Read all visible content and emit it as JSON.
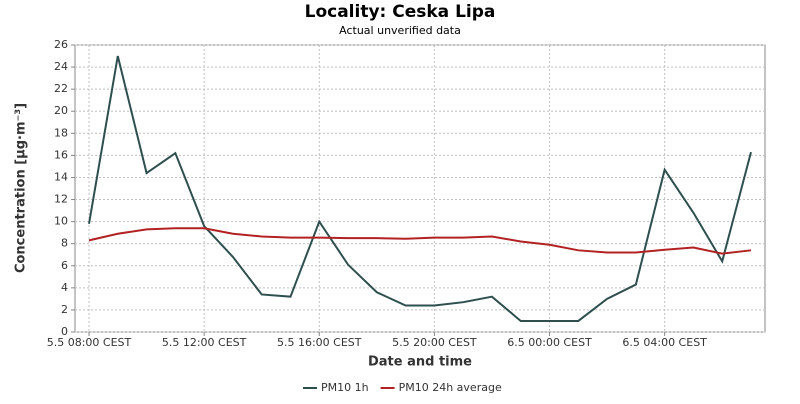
{
  "chart_data": {
    "type": "line",
    "title": "Locality: Ceska Lipa",
    "subtitle": "Actual unverified data",
    "x_label": "Date and time",
    "y_label": "Concentration [µg·m⁻³]",
    "categories": [
      "5.5 08:00 CEST",
      null,
      null,
      null,
      "5.5 12:00 CEST",
      null,
      null,
      null,
      "5.5 16:00 CEST",
      null,
      null,
      null,
      "5.5 20:00 CEST",
      null,
      null,
      null,
      "6.5 00:00 CEST",
      null,
      null,
      null,
      "6.5 04:00 CEST",
      null,
      null,
      null
    ],
    "series": [
      {
        "name": "PM10 1h",
        "color": "#2f4f4f",
        "values": [
          9.8,
          25,
          14.4,
          16.2,
          9.6,
          6.8,
          3.4,
          3.2,
          10,
          6.1,
          3.6,
          2.4,
          2.4,
          2.7,
          3.2,
          1.0,
          1.0,
          1.0,
          3.0,
          4.3,
          14.7,
          10.8,
          6.4,
          16.3
        ]
      },
      {
        "name": "PM10 24h average",
        "color": "#b22222",
        "values": [
          8.3,
          8.9,
          9.3,
          9.4,
          9.4,
          8.9,
          8.65,
          8.55,
          8.55,
          8.5,
          8.5,
          8.45,
          8.55,
          8.55,
          8.65,
          8.2,
          7.9,
          7.4,
          7.2,
          7.2,
          7.45,
          7.65,
          7.1,
          7.4
        ]
      }
    ],
    "ylim": [
      0,
      26
    ],
    "yticks": [
      0,
      2,
      4,
      6,
      8,
      10,
      12,
      14,
      16,
      18,
      20,
      22,
      24,
      26
    ],
    "grid": true,
    "legend": "bottom"
  }
}
